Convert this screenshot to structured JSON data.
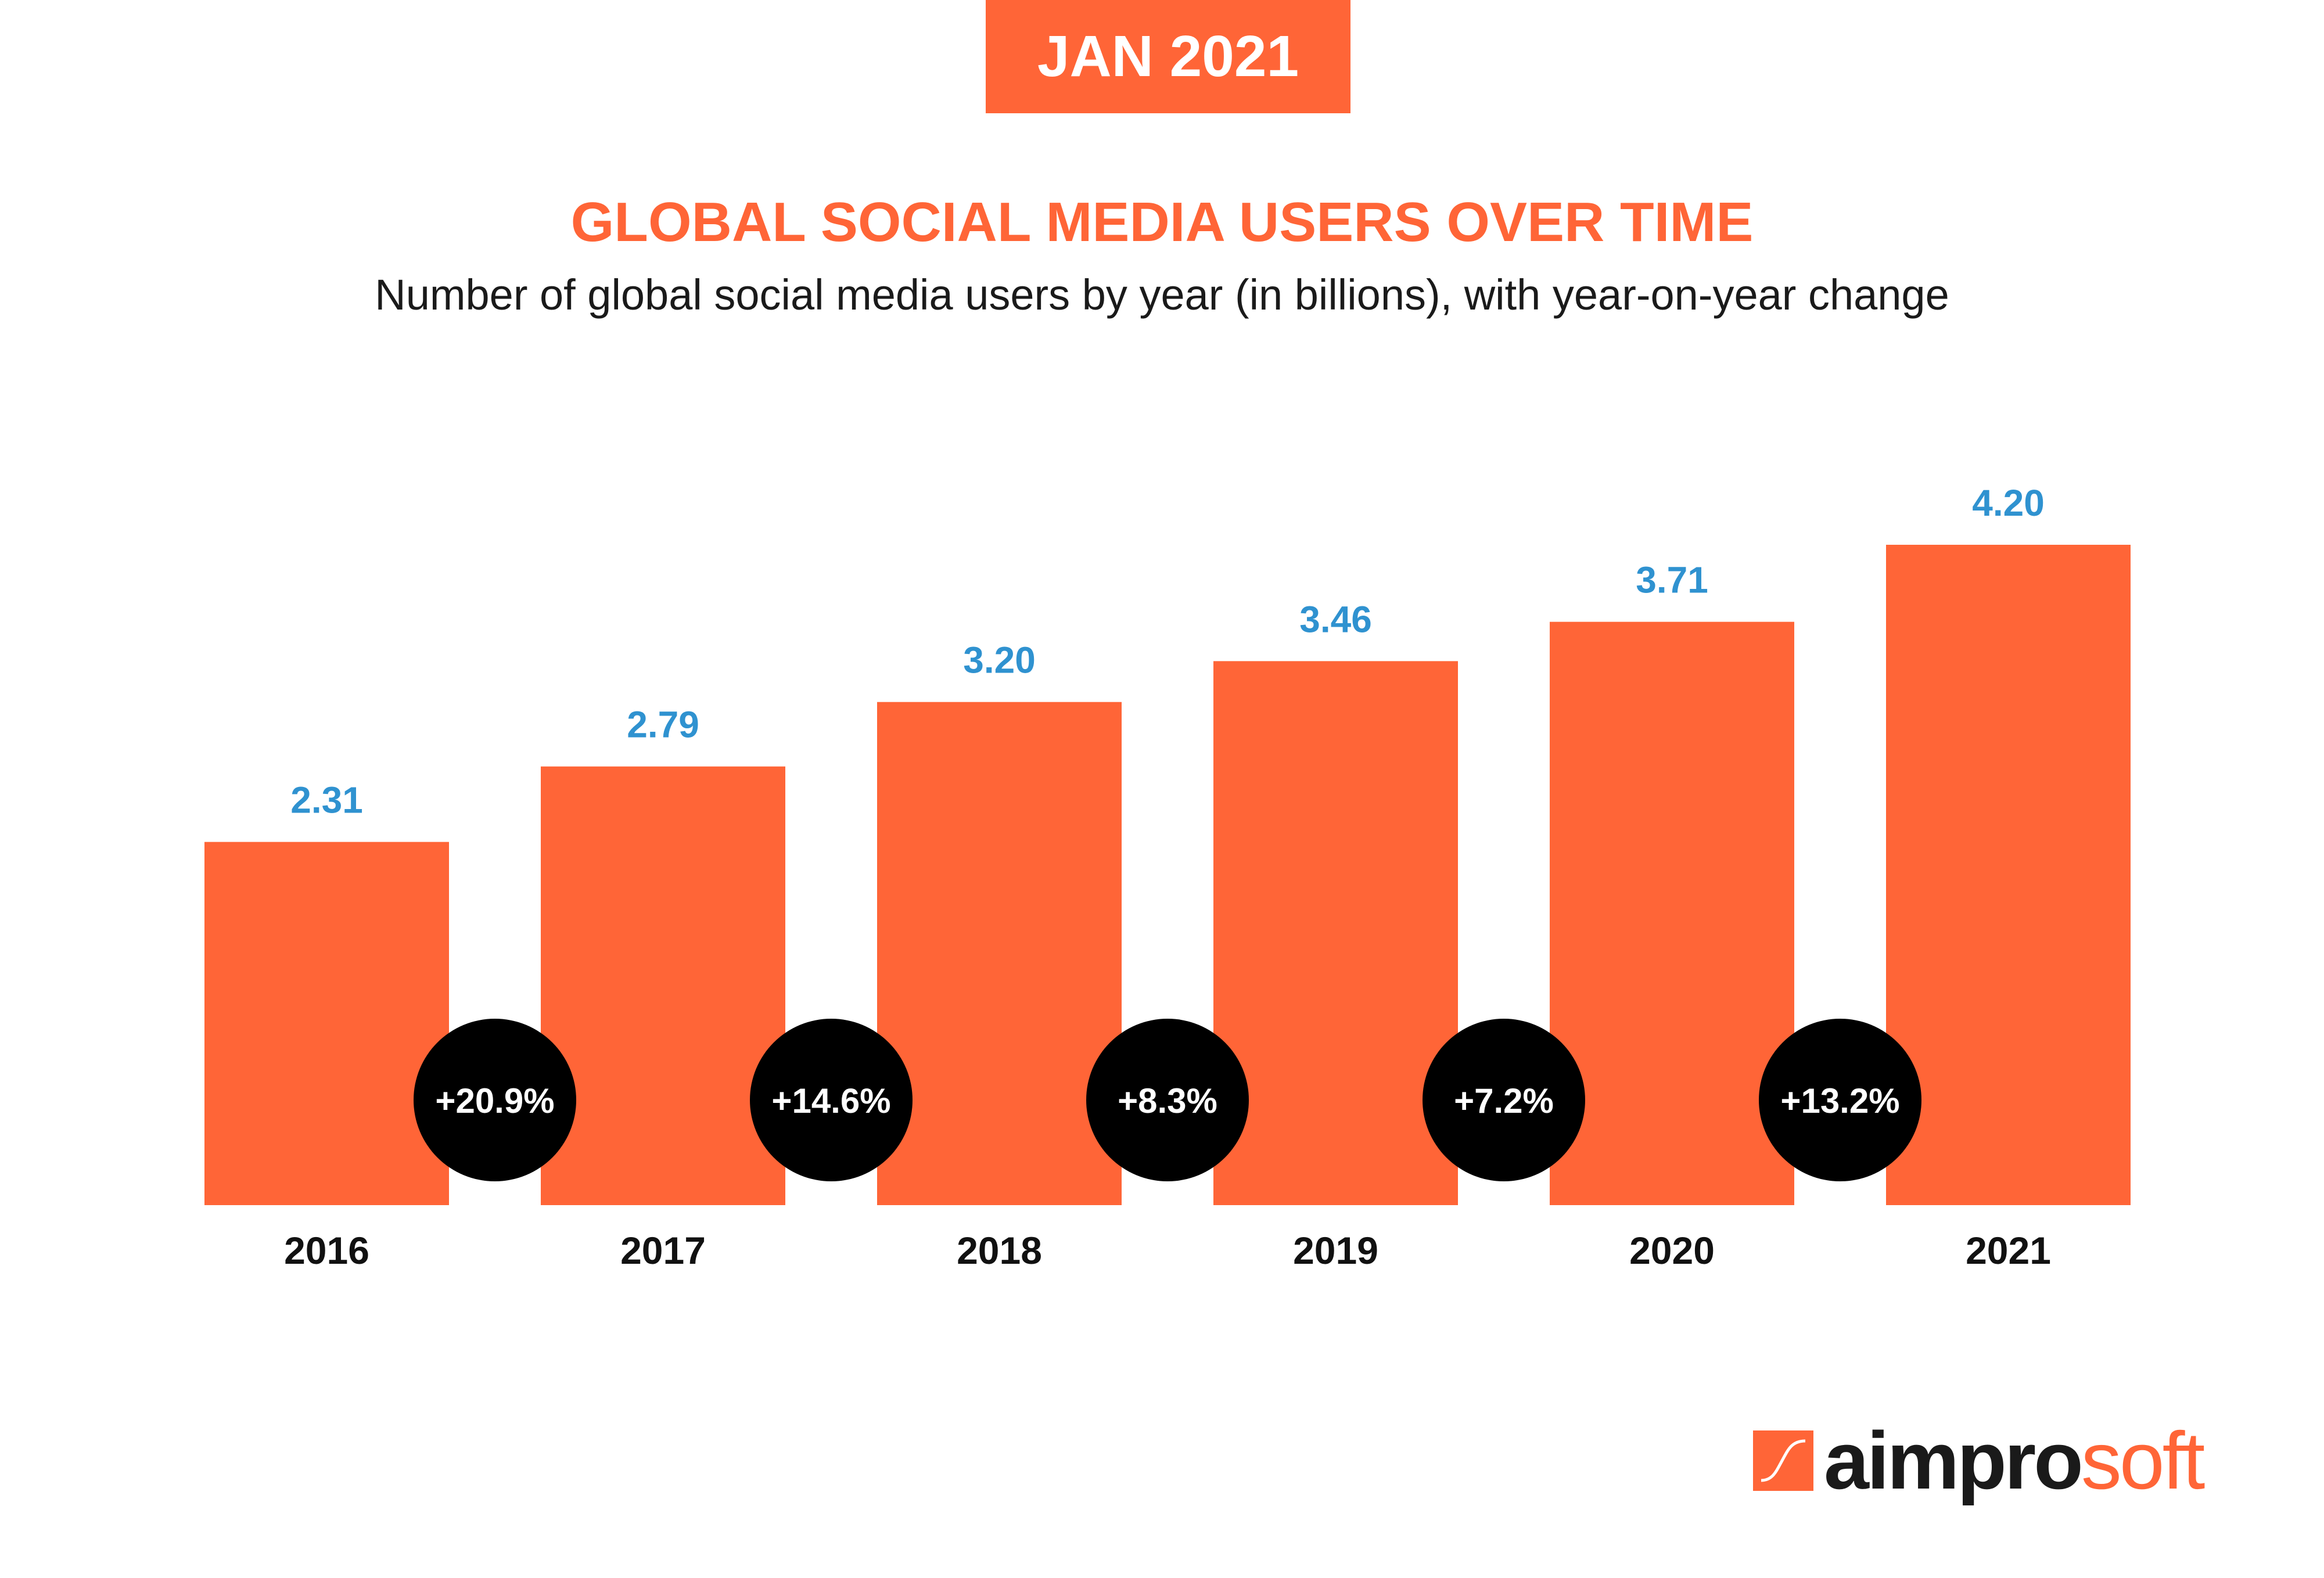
{
  "badge": {
    "label": "JAN 2021"
  },
  "header": {
    "title": "GLOBAL SOCIAL MEDIA USERS OVER TIME",
    "subtitle": "Number of global social media users by year (in billions), with year-on-year change"
  },
  "colors": {
    "bar": "#ff6537",
    "value_label": "#2f92d0",
    "category_label": "#111111",
    "change_bubble": "#000000",
    "change_text": "#ffffff"
  },
  "chart_data": {
    "type": "bar",
    "title": "GLOBAL SOCIAL MEDIA USERS OVER TIME",
    "subtitle": "Number of global social media users by year (in billions), with year-on-year change",
    "xlabel": "",
    "ylabel": "",
    "categories": [
      "2016",
      "2017",
      "2018",
      "2019",
      "2020",
      "2021"
    ],
    "values": [
      2.31,
      2.79,
      3.2,
      3.46,
      3.71,
      4.2
    ],
    "value_labels": [
      "2.31",
      "2.79",
      "3.20",
      "3.46",
      "3.71",
      "4.20"
    ],
    "yoy_change": [
      "+20.9%",
      "+14.6%",
      "+8.3%",
      "+7.2%",
      "+13.2%"
    ],
    "ylim": [
      0,
      4.2
    ],
    "grid": false
  },
  "logo": {
    "text_dark": "aimpro",
    "text_accent": "soft",
    "icon": "aimprosoft-curve-icon"
  }
}
